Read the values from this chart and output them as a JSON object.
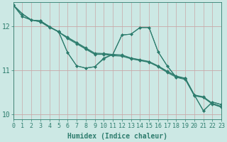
{
  "xlabel": "Humidex (Indice chaleur)",
  "background_color": "#cce8e4",
  "grid_color_v": "#c8a8a8",
  "grid_color_h": "#c8a8a8",
  "line_color": "#2e7d6e",
  "xlim": [
    0,
    23
  ],
  "ylim": [
    9.88,
    12.55
  ],
  "yticks": [
    10,
    11,
    12
  ],
  "xticks": [
    0,
    1,
    2,
    3,
    4,
    5,
    6,
    7,
    8,
    9,
    10,
    11,
    12,
    13,
    14,
    15,
    16,
    17,
    18,
    19,
    20,
    21,
    22,
    23
  ],
  "lines": [
    [
      12.48,
      12.28,
      12.14,
      12.12,
      11.99,
      11.87,
      11.75,
      11.63,
      11.51,
      11.39,
      11.38,
      11.36,
      11.35,
      11.28,
      11.24,
      11.2,
      11.1,
      10.98,
      10.87,
      10.82,
      10.44,
      10.4,
      10.25,
      10.18
    ],
    [
      12.48,
      12.28,
      12.14,
      12.12,
      11.99,
      11.87,
      11.72,
      11.6,
      11.48,
      11.36,
      11.36,
      11.33,
      11.32,
      11.26,
      11.22,
      11.18,
      11.08,
      10.95,
      10.84,
      10.79,
      10.42,
      10.38,
      10.23,
      10.16
    ],
    [
      12.48,
      12.28,
      12.14,
      12.12,
      11.99,
      11.87,
      11.74,
      11.62,
      11.49,
      11.37,
      11.37,
      11.35,
      11.33,
      11.27,
      11.23,
      11.19,
      11.09,
      10.97,
      10.86,
      10.81,
      10.43,
      10.39,
      10.24,
      10.17
    ],
    [
      12.48,
      12.22,
      12.14,
      12.1,
      11.98,
      11.88,
      11.4,
      11.1,
      11.05,
      11.08,
      11.28,
      11.36,
      11.8,
      11.82,
      11.97,
      11.97,
      11.42,
      11.1,
      10.84,
      10.82,
      10.44,
      10.08,
      10.28,
      10.22
    ],
    [
      12.48,
      12.22,
      12.14,
      12.1,
      11.97,
      11.88,
      11.4,
      11.1,
      11.05,
      11.08,
      11.26,
      11.36,
      11.8,
      11.82,
      11.97,
      11.97,
      11.42,
      11.1,
      10.84,
      10.82,
      10.44,
      10.08,
      10.28,
      10.22
    ]
  ],
  "xlabel_fontsize": 7,
  "tick_fontsize": 6
}
